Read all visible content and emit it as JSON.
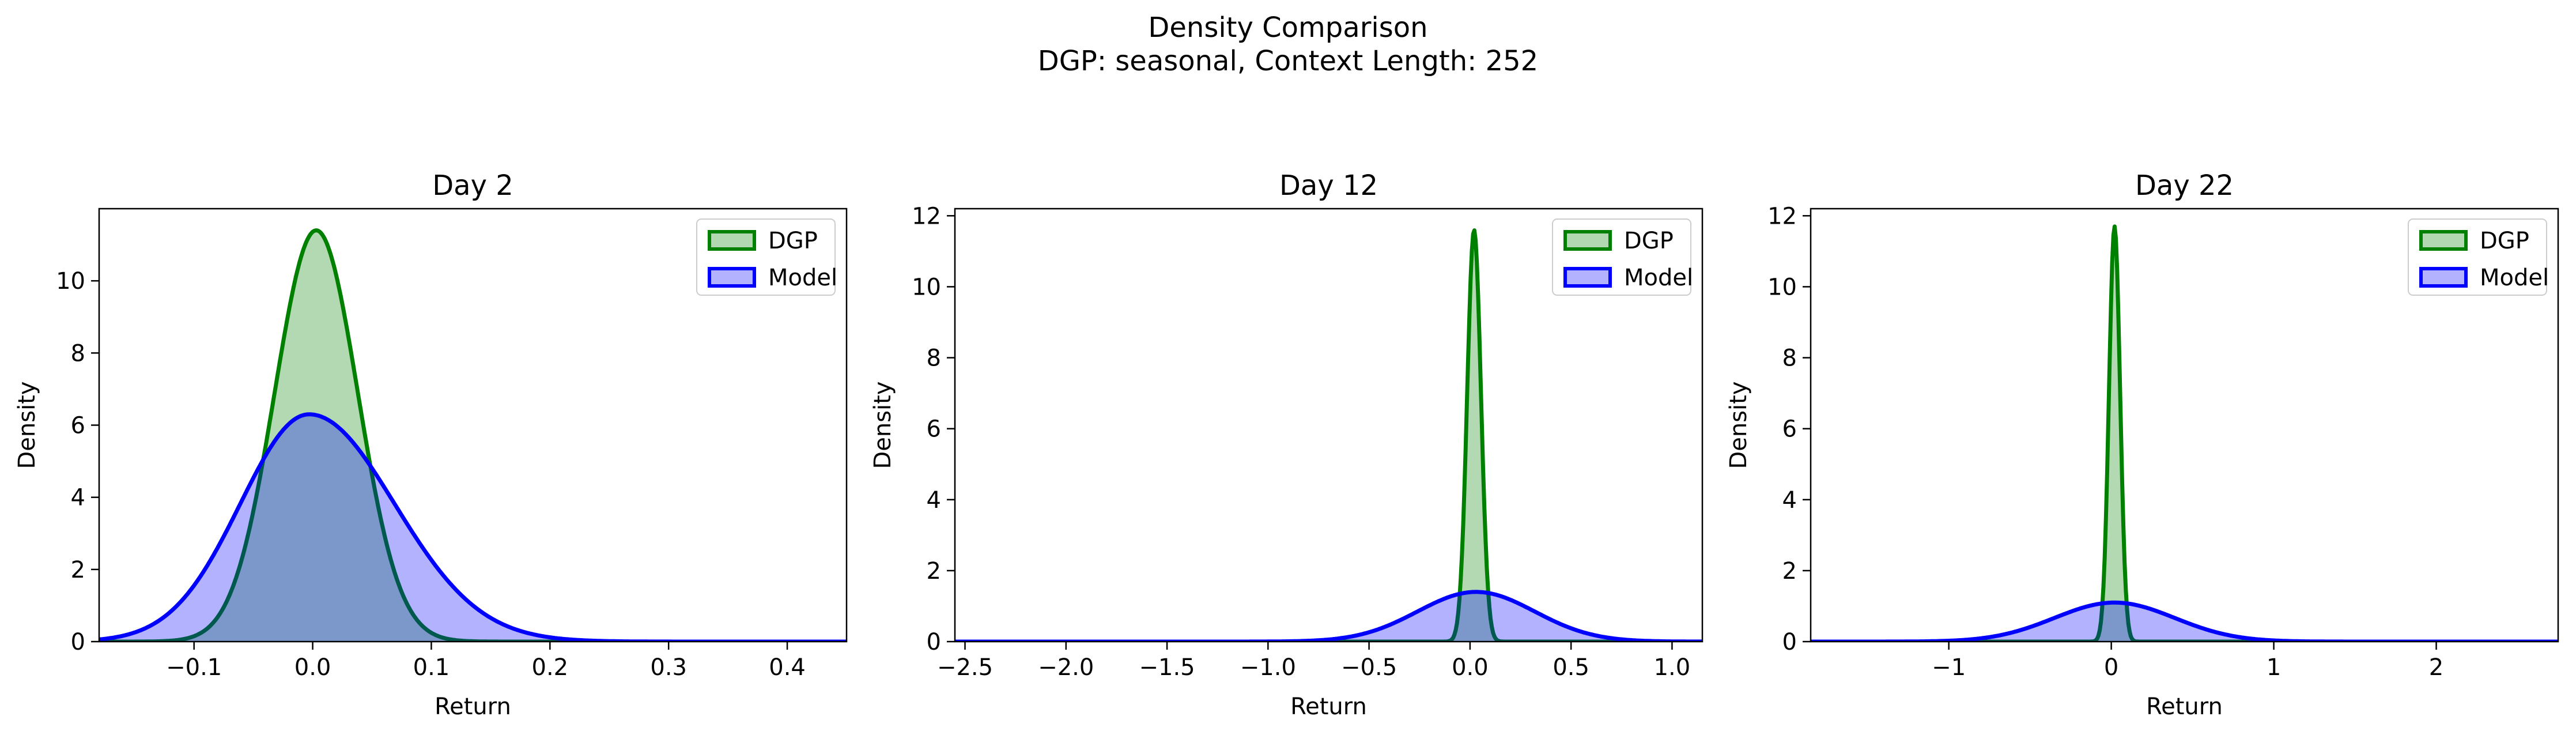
{
  "figure": {
    "title_line1": "Density Comparison",
    "title_line2": "DGP: seasonal, Context Length: 252"
  },
  "colors": {
    "dgp_line": "#008000",
    "dgp_fill": "#b2d8b2",
    "model_line": "#0000ff",
    "model_fill": "#b2b2ff"
  },
  "chart_data": [
    {
      "type": "area",
      "title": "Day 2",
      "xlabel": "Return",
      "ylabel": "Density",
      "xlim": [
        -0.18,
        0.45
      ],
      "ylim": [
        0,
        12
      ],
      "xticks": [
        -0.1,
        0.0,
        0.1,
        0.2,
        0.3,
        0.4
      ],
      "xtick_labels": [
        "−0.1",
        "0.0",
        "0.1",
        "0.2",
        "0.3",
        "0.4"
      ],
      "yticks": [
        0,
        2,
        4,
        6,
        8,
        10
      ],
      "ytick_labels": [
        "0",
        "2",
        "4",
        "6",
        "8",
        "10"
      ],
      "legend": "top-right",
      "grid": false,
      "series": [
        {
          "name": "DGP",
          "peak_x": 0.003,
          "peak_density": 11.4,
          "approx_support": [
            -0.11,
            0.11
          ]
        },
        {
          "name": "Model",
          "peak_x": -0.003,
          "peak_density": 6.3,
          "approx_support": [
            -0.18,
            0.4
          ]
        }
      ]
    },
    {
      "type": "area",
      "title": "Day 12",
      "xlabel": "Return",
      "ylabel": "Density",
      "xlim": [
        -2.55,
        1.15
      ],
      "ylim": [
        0,
        12.2
      ],
      "xticks": [
        -2.5,
        -2.0,
        -1.5,
        -1.0,
        -0.5,
        0.0,
        0.5,
        1.0
      ],
      "xtick_labels": [
        "−2.5",
        "−2.0",
        "−1.5",
        "−1.0",
        "−0.5",
        "0.0",
        "0.5",
        "1.0"
      ],
      "yticks": [
        0,
        2,
        4,
        6,
        8,
        10,
        12
      ],
      "ytick_labels": [
        "0",
        "2",
        "4",
        "6",
        "8",
        "10",
        "12"
      ],
      "legend": "top-right",
      "grid": false,
      "series": [
        {
          "name": "DGP",
          "peak_x": 0.02,
          "peak_density": 11.6,
          "approx_support": [
            -0.12,
            0.12
          ]
        },
        {
          "name": "Model",
          "peak_x": 0.03,
          "peak_density": 1.4,
          "approx_support": [
            -1.3,
            1.15
          ]
        }
      ]
    },
    {
      "type": "area",
      "title": "Day 22",
      "xlabel": "Return",
      "ylabel": "Density",
      "xlim": [
        -1.85,
        2.75
      ],
      "ylim": [
        0,
        12.2
      ],
      "xticks": [
        -1,
        0,
        1,
        2
      ],
      "xtick_labels": [
        "−1",
        "0",
        "1",
        "2"
      ],
      "yticks": [
        0,
        2,
        4,
        6,
        8,
        10,
        12
      ],
      "ytick_labels": [
        "0",
        "2",
        "4",
        "6",
        "8",
        "10",
        "12"
      ],
      "legend": "top-right",
      "grid": false,
      "series": [
        {
          "name": "DGP",
          "peak_x": 0.02,
          "peak_density": 11.7,
          "approx_support": [
            -0.12,
            0.12
          ]
        },
        {
          "name": "Model",
          "peak_x": 0.02,
          "peak_density": 1.1,
          "approx_support": [
            -1.5,
            1.7
          ]
        }
      ]
    }
  ]
}
